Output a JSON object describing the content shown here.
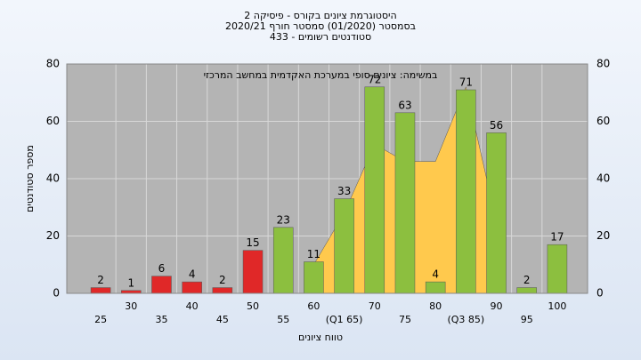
{
  "chart_data": {
    "type": "bar",
    "title_lines": [
      "היסטוגרמת ציונים בקורס - פיסיקה 2",
      "בסמסטר  (01/2020)  סמסטר חורף  2020/21",
      "סטודנטים רשומים - 433"
    ],
    "annotation": "במשימה: ציונים סופי במערכת האקדמית במחשב המרכזי",
    "x_label": "טווח ציונים",
    "y_label": "מספר סטודנטים",
    "categories": [
      "25",
      "30",
      "35",
      "40",
      "45",
      "50",
      "55",
      "60",
      "(Q1 65)",
      "70",
      "75",
      "80",
      "(Q3 85)",
      "90",
      "95",
      "100"
    ],
    "values": [
      2,
      1,
      6,
      4,
      2,
      15,
      23,
      11,
      33,
      72,
      63,
      4,
      71,
      56,
      2,
      17
    ],
    "colors": [
      "#e02828",
      "#e02828",
      "#e02828",
      "#e02828",
      "#e02828",
      "#e02828",
      "#8cbf3f",
      "#8cbf3f",
      "#8cbf3f",
      "#8cbf3f",
      "#8cbf3f",
      "#8cbf3f",
      "#8cbf3f",
      "#8cbf3f",
      "#8cbf3f",
      "#8cbf3f"
    ],
    "area": {
      "color": "#ffc94d",
      "values": [
        null,
        null,
        null,
        null,
        null,
        null,
        null,
        10,
        28,
        52,
        46,
        46,
        72,
        25,
        null,
        null
      ]
    },
    "ylim": [
      0,
      80
    ],
    "yticks": [
      0,
      20,
      40,
      60,
      80
    ],
    "grid": true
  }
}
